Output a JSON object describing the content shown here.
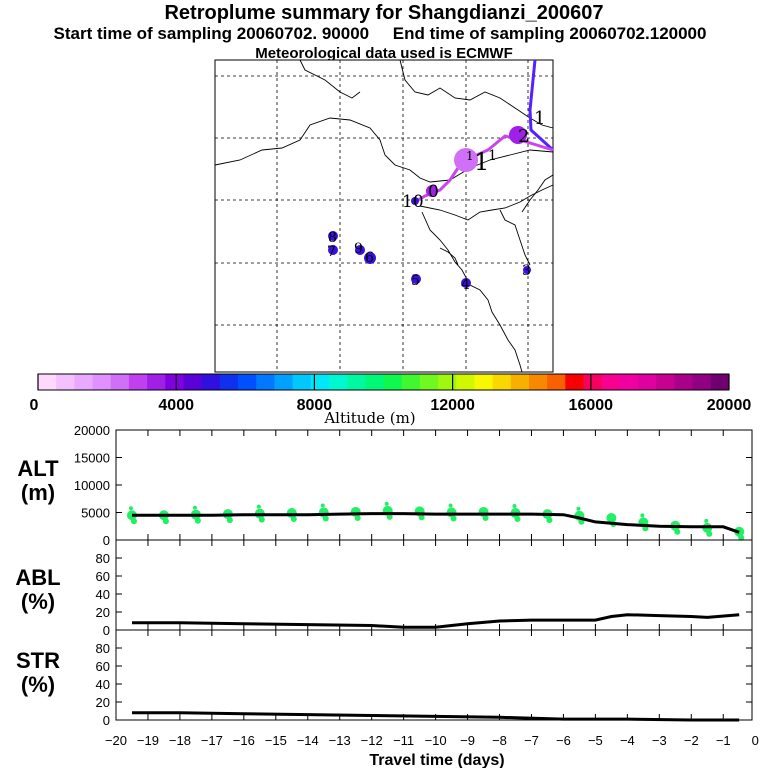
{
  "header": {
    "title": "Retroplume summary for Shangdianzi_200607",
    "start_label": "Start time of sampling 20060702. 90000",
    "end_label": "End time of sampling 20060702.120000",
    "met_label": "Meteorological data used is ECMWF"
  },
  "colors": {
    "colorbar": [
      "#ffd8ff",
      "#f5c0ff",
      "#eaa8ff",
      "#e090ff",
      "#d070f8",
      "#c040f0",
      "#a020e8",
      "#8000e0",
      "#5a00d8",
      "#3010e0",
      "#1030f0",
      "#0050ff",
      "#0078ff",
      "#00a0ff",
      "#00c8ff",
      "#00e8f8",
      "#00f8d0",
      "#00f8a0",
      "#00f878",
      "#10f850",
      "#40f830",
      "#70f820",
      "#a0f810",
      "#d0f800",
      "#f8f800",
      "#f8d800",
      "#f8b000",
      "#f88800",
      "#f86000",
      "#f80000",
      "#f80060",
      "#f80090",
      "#f000a0",
      "#e000a0",
      "#c80090",
      "#a80088",
      "#900080",
      "#700070"
    ],
    "series_dots": "#22ee66",
    "traj_purple": "#5522ff",
    "traj_violet": "#cc44ee",
    "dot_blue": "#3a10e0"
  },
  "map": {
    "labels": [
      {
        "text": "1"
      },
      {
        "text": "2"
      },
      {
        "text": "1"
      },
      {
        "text": "1"
      },
      {
        "text": "1"
      },
      {
        "text": "10"
      },
      {
        "text": "0"
      },
      {
        "text": "8"
      },
      {
        "text": "7"
      },
      {
        "text": "9"
      },
      {
        "text": "6"
      },
      {
        "text": "5"
      },
      {
        "text": "4"
      },
      {
        "text": "3"
      }
    ]
  },
  "chart_data": [
    {
      "type": "colorbar",
      "title": "Altitude (m)",
      "range": [
        0,
        20000
      ],
      "tick_labels": [
        "0",
        "4000",
        "8000",
        "12000",
        "16000",
        "20000"
      ],
      "tick_values": [
        0,
        4000,
        8000,
        12000,
        16000,
        20000
      ]
    },
    {
      "type": "line",
      "panel_label": "ALT",
      "panel_unit": "(m)",
      "ylim": [
        0,
        20000
      ],
      "yticks": [
        0,
        5000,
        10000,
        15000,
        20000
      ],
      "ytick_labels": [
        "0",
        "5000",
        "10000",
        "15000",
        "20000"
      ],
      "x": [
        -19.5,
        -19,
        -18,
        -17,
        -16,
        -15,
        -14,
        -13,
        -12,
        -11,
        -10,
        -9,
        -8,
        -7,
        -6,
        -5.5,
        -5,
        -4,
        -3,
        -2,
        -1,
        -0.5
      ],
      "y": [
        4500,
        4500,
        4500,
        4500,
        4600,
        4600,
        4600,
        4700,
        4800,
        4800,
        4700,
        4700,
        4700,
        4700,
        4600,
        4000,
        3300,
        2800,
        2500,
        2400,
        2400,
        1400
      ],
      "scatter_x": [
        -19.5,
        -18.5,
        -17.5,
        -16.5,
        -15.5,
        -14.5,
        -13.5,
        -12.5,
        -11.5,
        -10.5,
        -9.5,
        -8.5,
        -7.5,
        -6.5,
        -5.5,
        -4.5,
        -3.5,
        -2.5,
        -1.5,
        -0.5
      ],
      "scatter_y": [
        4500,
        4500,
        4600,
        4700,
        4800,
        4900,
        5000,
        5100,
        5300,
        5200,
        5000,
        5100,
        4900,
        4700,
        4400,
        4000,
        3200,
        2600,
        2200,
        1500
      ]
    },
    {
      "type": "line",
      "panel_label": "ABL",
      "panel_unit": "(%)",
      "ylim": [
        0,
        100
      ],
      "yticks": [
        0,
        20,
        40,
        60,
        80
      ],
      "ytick_labels": [
        "0",
        "20",
        "40",
        "60",
        "80"
      ],
      "x": [
        -19.5,
        -18,
        -16,
        -14,
        -12,
        -11,
        -10,
        -9,
        -8,
        -7,
        -6,
        -5,
        -4.5,
        -4,
        -3,
        -2,
        -1.5,
        -0.5
      ],
      "y": [
        8,
        8,
        7,
        6,
        5,
        3,
        3,
        7,
        10,
        11,
        11,
        11,
        15,
        17,
        16,
        15,
        14,
        17
      ]
    },
    {
      "type": "line",
      "panel_label": "STR",
      "panel_unit": "(%)",
      "ylim": [
        0,
        100
      ],
      "yticks": [
        0,
        20,
        40,
        60,
        80
      ],
      "ytick_labels": [
        "0",
        "20",
        "40",
        "60",
        "80"
      ],
      "x": [
        -19.5,
        -18,
        -16,
        -14,
        -12,
        -10,
        -8,
        -6,
        -4,
        -2,
        -0.5
      ],
      "y": [
        8,
        8,
        7,
        6,
        5,
        4,
        3,
        1,
        1,
        0,
        0
      ]
    },
    {
      "type": "axis",
      "xlabel": "Travel time (days)",
      "xlim": [
        -20,
        -0.1
      ],
      "xticks": [
        -20,
        -19,
        -18,
        -17,
        -16,
        -15,
        -14,
        -13,
        -12,
        -11,
        -10,
        -9,
        -8,
        -7,
        -6,
        -5,
        -4,
        -3,
        -2,
        -1,
        0
      ],
      "xtick_labels": [
        "−20",
        "−19",
        "−18",
        "−17",
        "−16",
        "−15",
        "−14",
        "−13",
        "−12",
        "−11",
        "−10",
        "−9",
        "−8",
        "−7",
        "−6",
        "−5",
        "−4",
        "−3",
        "−2",
        "−1",
        "0"
      ]
    }
  ]
}
